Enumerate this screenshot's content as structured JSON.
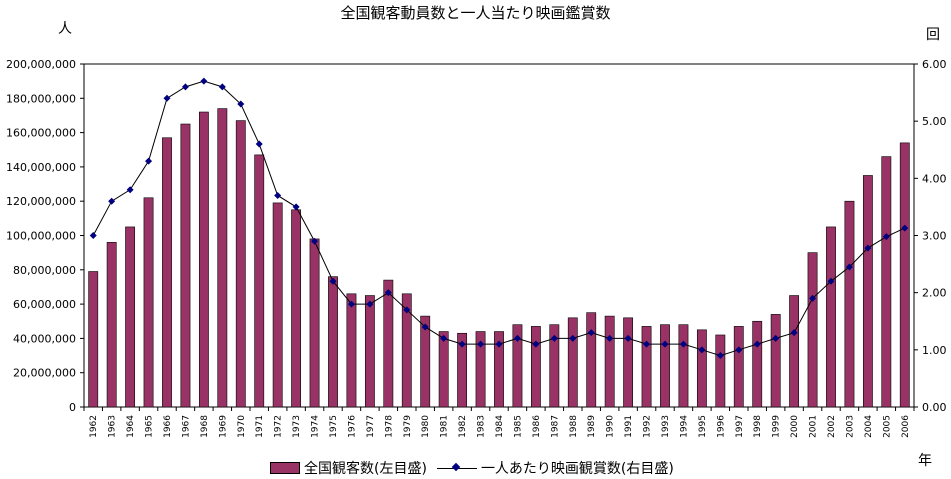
{
  "chart_data": {
    "type": "bar+line",
    "title": "全国観客動員数と一人当たり映画鑑賞数",
    "left_unit": "人",
    "right_unit": "回",
    "x_unit": "年",
    "categories": [
      "1962",
      "1963",
      "1964",
      "1965",
      "1966",
      "1967",
      "1968",
      "1969",
      "1970",
      "1971",
      "1972",
      "1973",
      "1974",
      "1975",
      "1976",
      "1977",
      "1978",
      "1979",
      "1980",
      "1981",
      "1982",
      "1983",
      "1984",
      "1985",
      "1986",
      "1987",
      "1988",
      "1989",
      "1990",
      "1991",
      "1992",
      "1993",
      "1994",
      "1995",
      "1996",
      "1997",
      "1998",
      "1999",
      "2000",
      "2001",
      "2002",
      "2003",
      "2004",
      "2005",
      "2006"
    ],
    "series": [
      {
        "name": "全国観客数(左目盛)",
        "type": "bar",
        "axis": "left",
        "color": "#993366",
        "values": [
          79000000,
          96000000,
          105000000,
          122000000,
          157000000,
          165000000,
          172000000,
          174000000,
          167000000,
          147000000,
          119000000,
          115000000,
          98000000,
          76000000,
          66000000,
          65000000,
          74000000,
          66000000,
          53000000,
          44000000,
          43000000,
          44000000,
          44000000,
          48000000,
          47000000,
          48000000,
          52000000,
          55000000,
          53000000,
          52000000,
          47000000,
          48000000,
          48000000,
          45000000,
          42000000,
          47000000,
          50000000,
          54000000,
          65000000,
          90000000,
          105000000,
          120000000,
          135000000,
          146000000,
          154000000
        ]
      },
      {
        "name": "一人あたり映画観賞数(右目盛)",
        "type": "line",
        "axis": "right",
        "color": "#000080",
        "values": [
          3.0,
          3.6,
          3.8,
          4.3,
          5.4,
          5.6,
          5.7,
          5.6,
          5.3,
          4.6,
          3.7,
          3.5,
          2.9,
          2.2,
          1.8,
          1.8,
          2.0,
          1.7,
          1.4,
          1.2,
          1.1,
          1.1,
          1.1,
          1.2,
          1.1,
          1.2,
          1.2,
          1.3,
          1.2,
          1.2,
          1.1,
          1.1,
          1.1,
          1.0,
          0.9,
          1.0,
          1.1,
          1.2,
          1.3,
          1.9,
          2.2,
          2.45,
          2.78,
          2.98,
          3.13
        ]
      }
    ],
    "ylim_left": [
      0,
      200000000
    ],
    "ylim_right": [
      0,
      6
    ],
    "yticks_left": [
      "0",
      "20,000,000",
      "40,000,000",
      "60,000,000",
      "80,000,000",
      "100,000,000",
      "120,000,000",
      "140,000,000",
      "160,000,000",
      "180,000,000",
      "200,000,000"
    ],
    "yticks_right": [
      "0.00",
      "1.00",
      "2.00",
      "3.00",
      "4.00",
      "5.00",
      "6.00"
    ],
    "legend_position": "bottom",
    "grid": false
  }
}
